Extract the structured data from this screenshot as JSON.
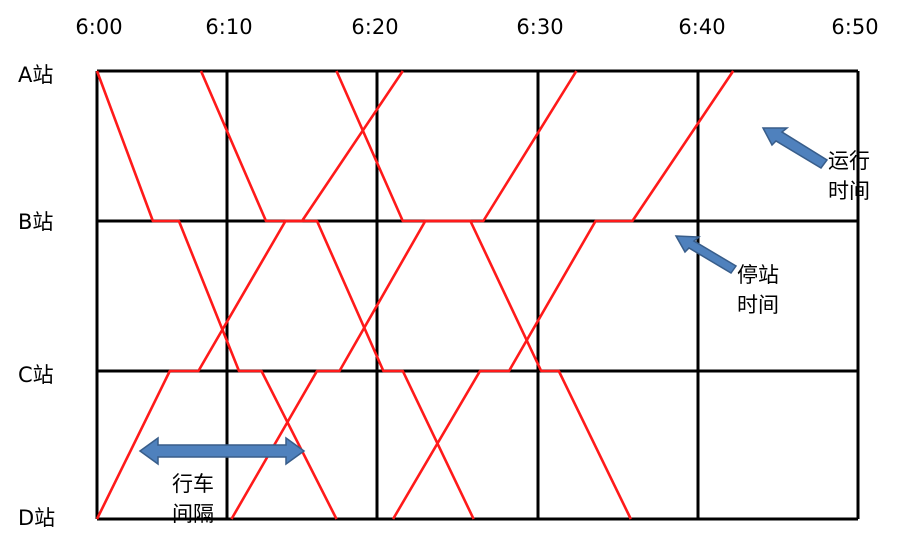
{
  "title": "",
  "time_labels": [
    "6:00",
    "6:10",
    "6:20",
    "6:30",
    "6:40",
    "6:50"
  ],
  "station_labels": [
    "A站",
    "B站",
    "C站",
    "D站"
  ],
  "colors": {
    "train_line": "#ff1a1a",
    "grid": "#000000",
    "arrow_fill": "#4f81bd",
    "arrow_stroke": "#385d8a"
  },
  "annotations": {
    "travel_time": [
      "运行",
      "时间"
    ],
    "dwell_time": [
      "停站",
      "时间"
    ],
    "headway": [
      "行车",
      "间隔"
    ]
  },
  "trains": {
    "downbound": [
      {
        "name": "",
        "points": [
          [
            "A",
            0.0
          ],
          [
            "B",
            4.3
          ],
          [
            "B",
            6.3
          ],
          [
            "C",
            10.8
          ],
          [
            "C",
            12.3
          ],
          [
            "D",
            17.3
          ]
        ]
      },
      {
        "name": "",
        "points": [
          [
            "A",
            8.0
          ],
          [
            "B",
            12.6
          ],
          [
            "B",
            16.0
          ],
          [
            "C",
            20.4
          ],
          [
            "C",
            21.6
          ],
          [
            "D",
            26.0
          ]
        ]
      },
      {
        "name": "",
        "points": [
          [
            "A",
            17.3
          ],
          [
            "B",
            21.6
          ],
          [
            "B",
            25.8
          ],
          [
            "C",
            30.2
          ],
          [
            "C",
            31.3
          ],
          [
            "D",
            35.8
          ]
        ]
      }
    ],
    "upbound": [
      {
        "name": "",
        "points": [
          [
            "D",
            0.0
          ],
          [
            "C",
            5.6
          ],
          [
            "C",
            7.8
          ],
          [
            "B",
            13.9
          ],
          [
            "B",
            15.0
          ],
          [
            "A",
            21.6
          ]
        ]
      },
      {
        "name": "",
        "points": [
          [
            "D",
            10.3
          ],
          [
            "C",
            16.0
          ],
          [
            "C",
            17.5
          ],
          [
            "B",
            23.0
          ],
          [
            "B",
            26.6
          ],
          [
            "A",
            32.4
          ]
        ]
      },
      {
        "name": "",
        "points": [
          [
            "D",
            21.0
          ],
          [
            "C",
            26.4
          ],
          [
            "C",
            28.2
          ],
          [
            "B",
            33.6
          ],
          [
            "B",
            35.9
          ],
          [
            "A",
            42.2
          ]
        ]
      }
    ]
  }
}
